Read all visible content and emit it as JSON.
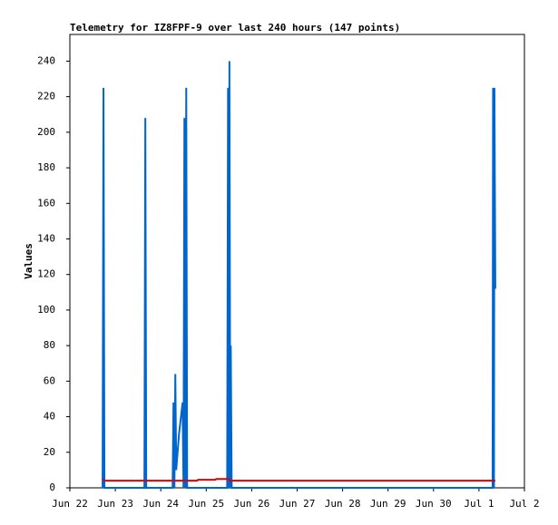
{
  "chart_data": {
    "type": "line",
    "title": "Telemetry for IZ8FPF-9 over last 240 hours (147 points)",
    "y_label": "Values",
    "xlim": [
      0,
      10
    ],
    "ylim": [
      0,
      255
    ],
    "xticks": [
      {
        "value": 0,
        "label": "Jun 22"
      },
      {
        "value": 1,
        "label": "Jun 23"
      },
      {
        "value": 2,
        "label": "Jun 24"
      },
      {
        "value": 3,
        "label": "Jun 25"
      },
      {
        "value": 4,
        "label": "Jun 26"
      },
      {
        "value": 5,
        "label": "Jun 27"
      },
      {
        "value": 6,
        "label": "Jun 28"
      },
      {
        "value": 7,
        "label": "Jun 29"
      },
      {
        "value": 8,
        "label": "Jun 30"
      },
      {
        "value": 9,
        "label": "Jul 1"
      },
      {
        "value": 10,
        "label": "Jul 2"
      }
    ],
    "yticks": [
      0,
      20,
      40,
      60,
      80,
      100,
      120,
      140,
      160,
      180,
      200,
      220,
      240
    ],
    "series": [
      {
        "color": "#0066cc",
        "x": [
          0.72,
          0.74,
          0.76,
          1.64,
          1.66,
          1.68,
          2.26,
          2.28,
          2.3,
          2.32,
          2.34,
          2.4,
          2.48,
          2.5,
          2.52,
          2.54,
          2.56,
          2.58,
          3.46,
          3.48,
          3.5,
          3.51,
          3.53,
          3.54,
          3.56,
          9.3,
          9.31,
          9.33,
          9.34,
          9.36
        ],
        "values": [
          0,
          225,
          0,
          0,
          208,
          0,
          0,
          48,
          0,
          64,
          10,
          30,
          48,
          0,
          208,
          0,
          225,
          0,
          0,
          225,
          0,
          240,
          0,
          80,
          0,
          0,
          225,
          0,
          225,
          112
        ]
      },
      {
        "color": "#dd0000",
        "x": [
          0.72,
          0.76,
          2.8,
          2.82,
          3.2,
          3.22,
          3.5,
          3.52,
          9.36
        ],
        "values": [
          5,
          4,
          4,
          4.5,
          4.5,
          5,
          5,
          4,
          4
        ]
      }
    ]
  }
}
